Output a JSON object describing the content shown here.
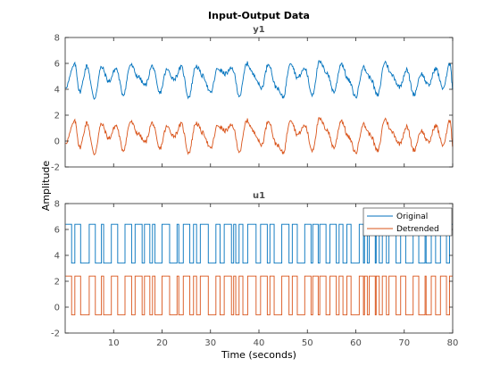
{
  "chart_data": {
    "type": "line",
    "title": "Input-Output Data",
    "xlabel": "Time (seconds)",
    "ylabel": "Amplitude",
    "xlim": [
      0,
      80
    ],
    "xticks": [
      10,
      20,
      30,
      40,
      50,
      60,
      70,
      80
    ],
    "grid": false,
    "colors": {
      "original": "#0072BD",
      "detrended": "#D95319"
    },
    "legend": {
      "placement": "top-right",
      "entries": [
        "Original",
        "Detrended"
      ]
    },
    "panels": [
      {
        "name": "y1",
        "ylim": [
          -2,
          8
        ],
        "yticks": [
          -2,
          0,
          2,
          4,
          6,
          8
        ],
        "series": [
          {
            "name": "Original",
            "x": [
              0.1,
              2,
              3,
              4.5,
              6,
              7.5,
              9,
              10.5,
              12,
              13.5,
              15,
              16.5,
              18,
              19.5,
              21,
              22.5,
              24,
              25.5,
              27,
              28.5,
              30,
              31.5,
              33,
              34.5,
              36,
              37.5,
              39,
              40.5,
              42,
              43.5,
              45,
              46.5,
              48,
              49.5,
              51,
              52.5,
              54,
              55.5,
              57,
              58.5,
              60,
              61.5,
              63,
              64.5,
              66,
              67.5,
              69,
              70.5,
              72,
              73.5,
              75,
              76.5,
              78,
              79.5,
              80
            ],
            "y": [
              4.2,
              5.9,
              3.8,
              5.8,
              3.3,
              5.7,
              4.6,
              5.6,
              3.6,
              5.9,
              5.0,
              4.3,
              5.8,
              3.7,
              5.5,
              4.8,
              5.7,
              3.4,
              5.8,
              5.0,
              3.7,
              5.6,
              5.2,
              5.6,
              3.5,
              6.0,
              5.1,
              4.1,
              6.0,
              4.2,
              3.4,
              6.1,
              4.9,
              5.6,
              3.6,
              6.1,
              5.3,
              3.8,
              6.0,
              4.7,
              3.4,
              5.7,
              4.9,
              3.5,
              6.1,
              5.1,
              4.2,
              5.5,
              3.6,
              5.2,
              4.3,
              5.6,
              4.1,
              6.0,
              4.1
            ]
          },
          {
            "name": "Detrended",
            "x": [
              0.1,
              2,
              3,
              4.5,
              6,
              7.5,
              9,
              10.5,
              12,
              13.5,
              15,
              16.5,
              18,
              19.5,
              21,
              22.5,
              24,
              25.5,
              27,
              28.5,
              30,
              31.5,
              33,
              34.5,
              36,
              37.5,
              39,
              40.5,
              42,
              43.5,
              45,
              46.5,
              48,
              49.5,
              51,
              52.5,
              54,
              55.5,
              57,
              58.5,
              60,
              61.5,
              63,
              64.5,
              66,
              67.5,
              69,
              70.5,
              72,
              73.5,
              75,
              76.5,
              78,
              79.5,
              80
            ],
            "y": [
              -0.1,
              1.5,
              -0.5,
              1.4,
              -1.0,
              1.3,
              0.2,
              1.2,
              -0.7,
              1.5,
              0.6,
              -0.1,
              1.4,
              -0.6,
              1.1,
              0.4,
              1.3,
              -0.9,
              1.4,
              0.6,
              -0.6,
              1.2,
              0.8,
              1.2,
              -0.8,
              1.6,
              0.7,
              -0.3,
              1.6,
              -0.2,
              -0.9,
              1.7,
              0.5,
              1.2,
              -0.7,
              1.7,
              0.9,
              -0.5,
              1.6,
              0.3,
              -0.9,
              1.3,
              0.5,
              -0.8,
              1.7,
              0.7,
              -0.2,
              1.1,
              -0.7,
              0.8,
              -0.1,
              1.2,
              -0.3,
              1.6,
              -0.3
            ]
          }
        ]
      },
      {
        "name": "u1",
        "ylim": [
          -2,
          8
        ],
        "yticks": [
          -2,
          0,
          2,
          4,
          6,
          8
        ],
        "signal_type": "binary-switching",
        "series": [
          {
            "name": "Original",
            "levels": [
              3.4,
              6.4
            ],
            "x_start": 0.1,
            "x_end": 80
          },
          {
            "name": "Detrended",
            "levels": [
              -0.6,
              2.4
            ],
            "x_start": 0.1,
            "x_end": 80
          }
        ]
      }
    ]
  }
}
